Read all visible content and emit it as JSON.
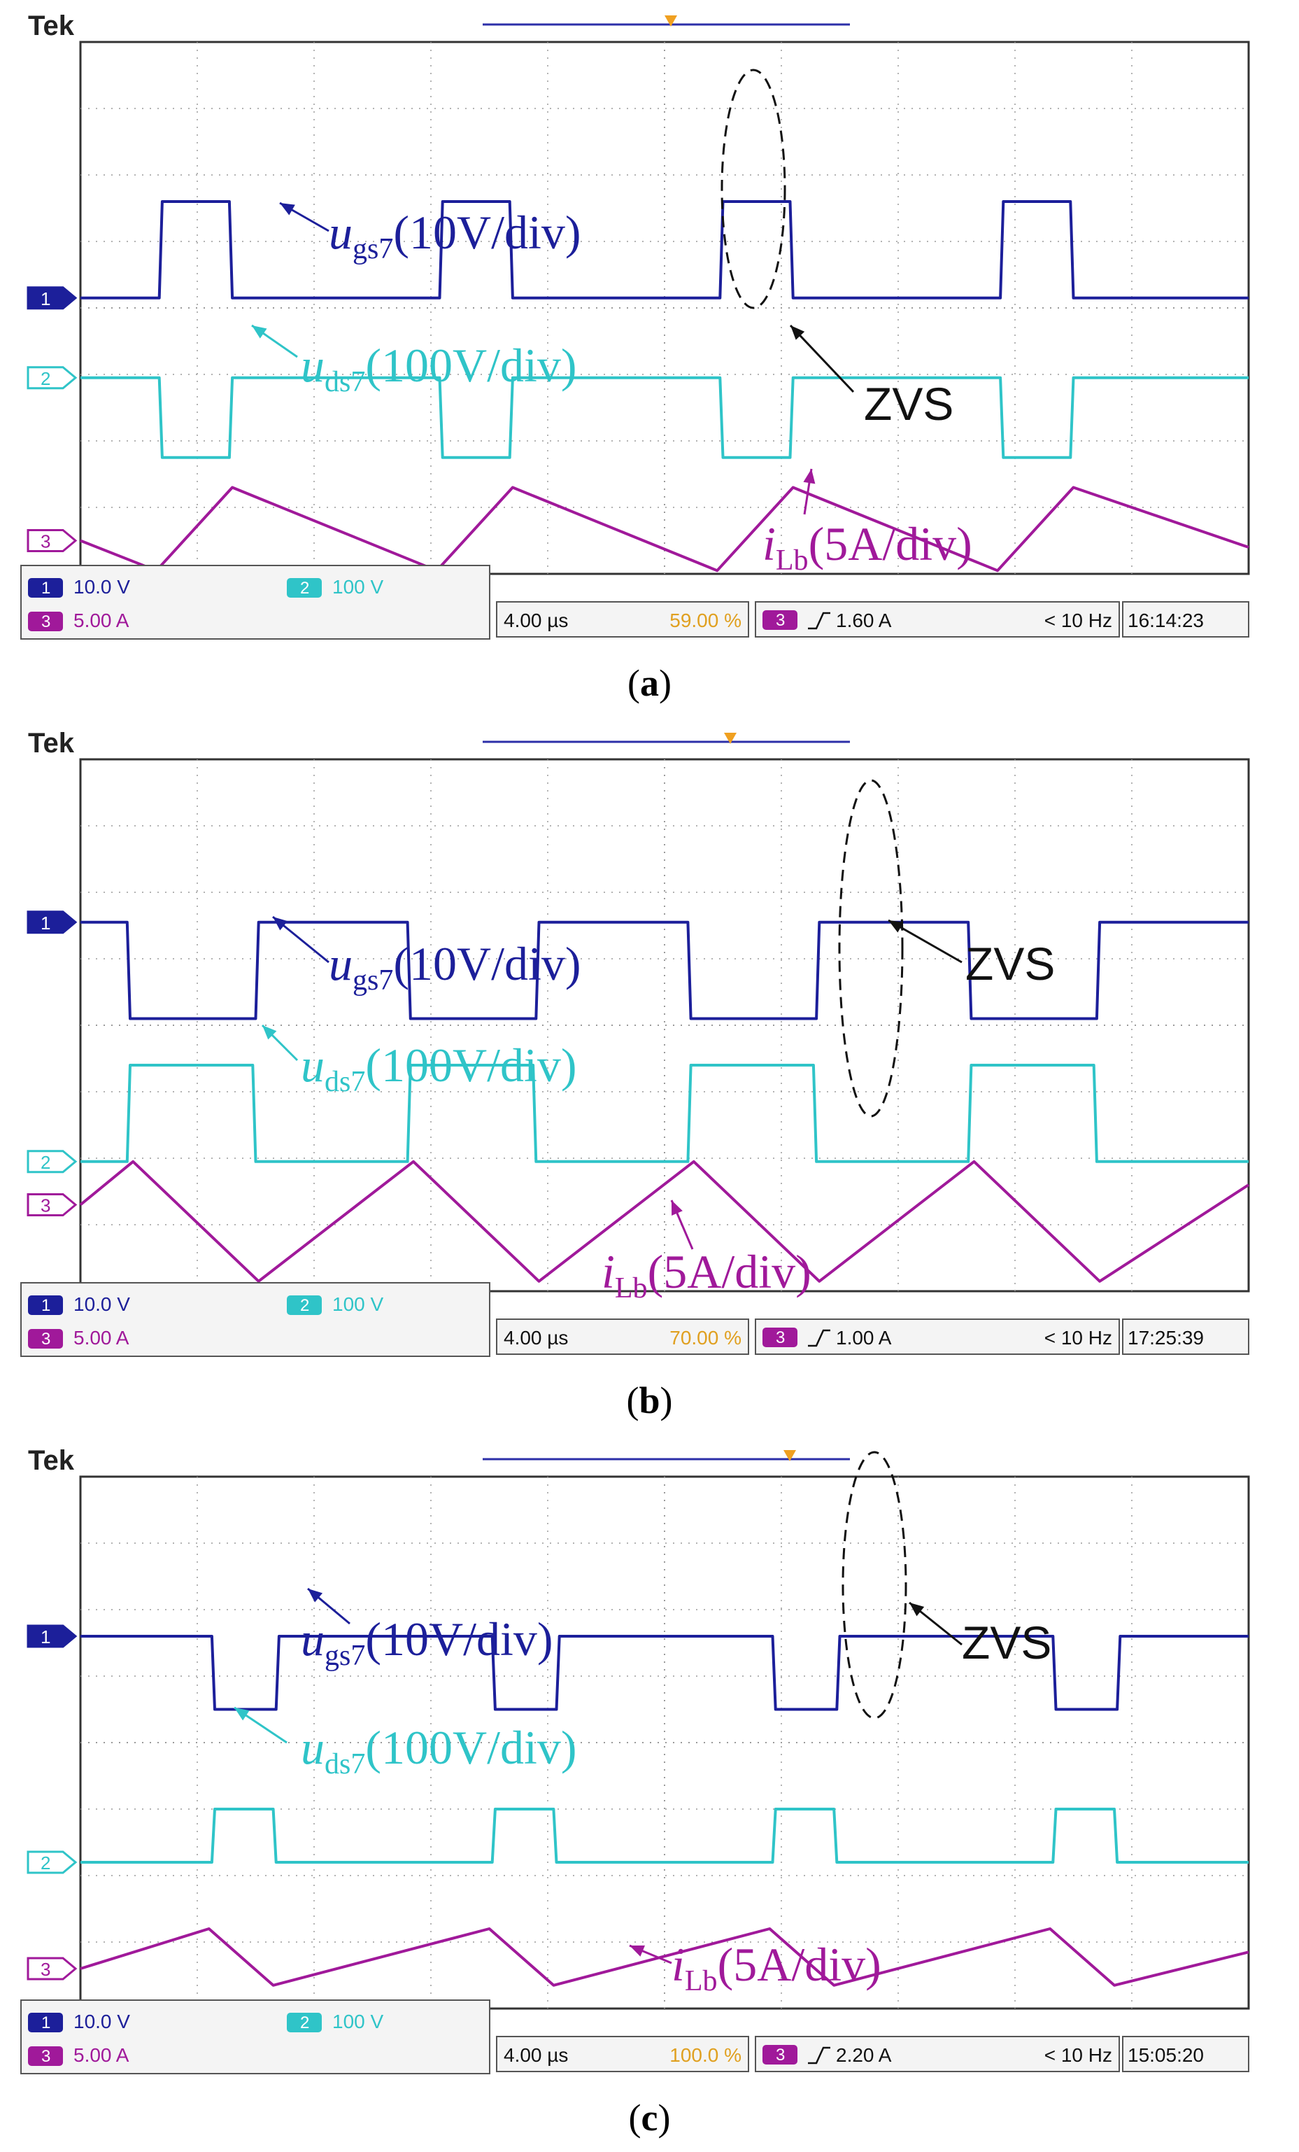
{
  "brand": "Tek",
  "channels": [
    {
      "id": "1",
      "color": "#1c1f9a",
      "scale": "10.0 V"
    },
    {
      "id": "2",
      "color": "#2fc4c8",
      "scale": "100 V"
    },
    {
      "id": "3",
      "color": "#a0199a",
      "scale": "5.00 A"
    }
  ],
  "annotations": {
    "ugs_base": "u",
    "ugs_sub": "gs7",
    "ugs_div": "(10V/div)",
    "uds_base": "u",
    "uds_sub": "ds7",
    "uds_div": "(100V/div)",
    "ilb_base": "i",
    "ilb_sub": "Lb",
    "ilb_div": "(5A/div)",
    "zvs": "ZVS"
  },
  "chart_data": [
    {
      "type": "line",
      "label": "a",
      "timebase": "4.00 µs",
      "trigger_position": "59.00 %",
      "trigger_channel": "3",
      "trigger_level": "1.60 A",
      "trigger_freq": "< 10 Hz",
      "time": "16:14:23",
      "period_div": 4.8,
      "series": [
        {
          "name": "ugs7",
          "channel": "1",
          "unit": "10V/div",
          "points": [
            [
              0,
              4.15
            ],
            [
              1.35,
              4.15
            ],
            [
              1.4,
              5.6
            ],
            [
              2.55,
              5.6
            ],
            [
              2.6,
              4.15
            ],
            [
              6.15,
              4.15
            ],
            [
              6.2,
              5.6
            ],
            [
              7.35,
              5.6
            ],
            [
              7.4,
              4.15
            ],
            [
              10.95,
              4.15
            ],
            [
              11.0,
              5.6
            ],
            [
              12.15,
              5.6
            ],
            [
              12.2,
              4.15
            ],
            [
              15.75,
              4.15
            ],
            [
              15.8,
              5.6
            ],
            [
              16.95,
              5.6
            ],
            [
              17.0,
              4.15
            ],
            [
              20,
              4.15
            ]
          ]
        },
        {
          "name": "uds7",
          "channel": "2",
          "unit": "100V/div",
          "points": [
            [
              0,
              2.95
            ],
            [
              1.35,
              2.95
            ],
            [
              1.4,
              1.75
            ],
            [
              2.55,
              1.75
            ],
            [
              2.6,
              2.95
            ],
            [
              6.15,
              2.95
            ],
            [
              6.2,
              1.75
            ],
            [
              7.35,
              1.75
            ],
            [
              7.4,
              2.95
            ],
            [
              10.95,
              2.95
            ],
            [
              11.0,
              1.75
            ],
            [
              12.15,
              1.75
            ],
            [
              12.2,
              2.95
            ],
            [
              15.75,
              2.95
            ],
            [
              15.8,
              1.75
            ],
            [
              16.95,
              1.75
            ],
            [
              17.0,
              2.95
            ],
            [
              20,
              2.95
            ]
          ]
        },
        {
          "name": "iLb",
          "channel": "3",
          "unit": "5A/div",
          "points": [
            [
              0,
              0.5
            ],
            [
              1.3,
              0.05
            ],
            [
              2.6,
              1.3
            ],
            [
              6.1,
              0.05
            ],
            [
              7.4,
              1.3
            ],
            [
              10.9,
              0.05
            ],
            [
              12.2,
              1.3
            ],
            [
              15.7,
              0.05
            ],
            [
              17.0,
              1.3
            ],
            [
              20,
              0.4
            ]
          ]
        }
      ]
    },
    {
      "type": "line",
      "label": "b",
      "timebase": "4.00 µs",
      "trigger_position": "70.00 %",
      "trigger_channel": "3",
      "trigger_level": "1.00 A",
      "trigger_freq": "< 10 Hz",
      "time": "17:25:39",
      "period_div": 4.8,
      "series": [
        {
          "name": "ugs7",
          "channel": "1",
          "unit": "10V/div",
          "points": [
            [
              0,
              5.55
            ],
            [
              0.8,
              5.55
            ],
            [
              0.85,
              4.1
            ],
            [
              3.0,
              4.1
            ],
            [
              3.05,
              5.55
            ],
            [
              5.6,
              5.55
            ],
            [
              5.65,
              4.1
            ],
            [
              7.8,
              4.1
            ],
            [
              7.85,
              5.55
            ],
            [
              10.4,
              5.55
            ],
            [
              10.45,
              4.1
            ],
            [
              12.6,
              4.1
            ],
            [
              12.65,
              5.55
            ],
            [
              15.2,
              5.55
            ],
            [
              15.25,
              4.1
            ],
            [
              17.4,
              4.1
            ],
            [
              17.45,
              5.55
            ],
            [
              20,
              5.55
            ]
          ]
        },
        {
          "name": "uds7",
          "channel": "2",
          "unit": "100V/div",
          "points": [
            [
              0,
              1.95
            ],
            [
              0.8,
              1.95
            ],
            [
              0.85,
              3.4
            ],
            [
              2.95,
              3.4
            ],
            [
              3.0,
              1.95
            ],
            [
              5.6,
              1.95
            ],
            [
              5.65,
              3.4
            ],
            [
              7.75,
              3.4
            ],
            [
              7.8,
              1.95
            ],
            [
              10.4,
              1.95
            ],
            [
              10.45,
              3.4
            ],
            [
              12.55,
              3.4
            ],
            [
              12.6,
              1.95
            ],
            [
              15.2,
              1.95
            ],
            [
              15.25,
              3.4
            ],
            [
              17.35,
              3.4
            ],
            [
              17.4,
              1.95
            ],
            [
              20,
              1.95
            ]
          ]
        },
        {
          "name": "iLb",
          "channel": "3",
          "unit": "5A/div",
          "points": [
            [
              0,
              1.3
            ],
            [
              0.9,
              1.95
            ],
            [
              3.05,
              0.15
            ],
            [
              5.7,
              1.95
            ],
            [
              7.85,
              0.15
            ],
            [
              10.5,
              1.95
            ],
            [
              12.65,
              0.15
            ],
            [
              15.3,
              1.95
            ],
            [
              17.45,
              0.15
            ],
            [
              20,
              1.6
            ]
          ]
        }
      ]
    },
    {
      "type": "line",
      "label": "c",
      "timebase": "4.00 µs",
      "trigger_position": "100.0 %",
      "trigger_channel": "3",
      "trigger_level": "2.20 A",
      "trigger_freq": "< 10 Hz",
      "time": "15:05:20",
      "period_div": 4.8,
      "series": [
        {
          "name": "ugs7",
          "channel": "1",
          "unit": "10V/div",
          "points": [
            [
              0,
              5.6
            ],
            [
              2.25,
              5.6
            ],
            [
              2.3,
              4.5
            ],
            [
              3.35,
              4.5
            ],
            [
              3.4,
              5.6
            ],
            [
              7.05,
              5.6
            ],
            [
              7.1,
              4.5
            ],
            [
              8.15,
              4.5
            ],
            [
              8.2,
              5.6
            ],
            [
              11.85,
              5.6
            ],
            [
              11.9,
              4.5
            ],
            [
              12.95,
              4.5
            ],
            [
              13.0,
              5.6
            ],
            [
              16.65,
              5.6
            ],
            [
              16.7,
              4.5
            ],
            [
              17.75,
              4.5
            ],
            [
              17.8,
              5.6
            ],
            [
              20,
              5.6
            ]
          ]
        },
        {
          "name": "uds7",
          "channel": "2",
          "unit": "100V/div",
          "points": [
            [
              0,
              2.2
            ],
            [
              2.25,
              2.2
            ],
            [
              2.3,
              3.0
            ],
            [
              3.3,
              3.0
            ],
            [
              3.35,
              2.2
            ],
            [
              7.05,
              2.2
            ],
            [
              7.1,
              3.0
            ],
            [
              8.1,
              3.0
            ],
            [
              8.15,
              2.2
            ],
            [
              11.85,
              2.2
            ],
            [
              11.9,
              3.0
            ],
            [
              12.9,
              3.0
            ],
            [
              12.95,
              2.2
            ],
            [
              16.65,
              2.2
            ],
            [
              16.7,
              3.0
            ],
            [
              17.7,
              3.0
            ],
            [
              17.75,
              2.2
            ],
            [
              20,
              2.2
            ]
          ]
        },
        {
          "name": "iLb",
          "channel": "3",
          "unit": "5A/div",
          "points": [
            [
              0,
              0.6
            ],
            [
              2.2,
              1.2
            ],
            [
              3.3,
              0.35
            ],
            [
              7.0,
              1.2
            ],
            [
              8.1,
              0.35
            ],
            [
              11.8,
              1.2
            ],
            [
              12.9,
              0.35
            ],
            [
              16.6,
              1.2
            ],
            [
              17.7,
              0.35
            ],
            [
              20,
              0.85
            ]
          ]
        }
      ]
    }
  ]
}
